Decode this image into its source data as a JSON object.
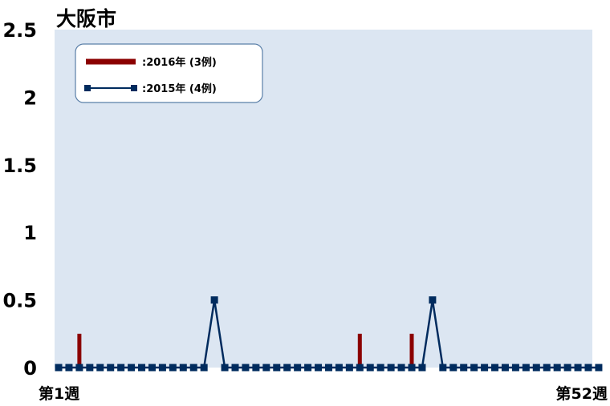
{
  "chart_data": {
    "type": "line",
    "title": "大阪市",
    "xlabel": "",
    "ylabel": "",
    "ylim": [
      0,
      2.5
    ],
    "yticks": [
      "0",
      "0.5",
      "1",
      "1.5",
      "2",
      "2.5"
    ],
    "xticks": [
      "第1週",
      "第52週"
    ],
    "x_range": [
      1,
      52
    ],
    "grid": false,
    "legend_position": "top-left",
    "background_color": "#dce6f2",
    "series": [
      {
        "name": ":2016年 (3例)",
        "kind": "bar",
        "color": "#8b0000",
        "points": [
          [
            3,
            0.25
          ],
          [
            30,
            0.25
          ],
          [
            35,
            0.25
          ]
        ]
      },
      {
        "name": ":2015年 (4例)",
        "kind": "line",
        "color": "#002b5e",
        "values": [
          0,
          0,
          0,
          0,
          0,
          0,
          0,
          0,
          0,
          0,
          0,
          0,
          0,
          0,
          0,
          0.5,
          0,
          0,
          0,
          0,
          0,
          0,
          0,
          0,
          0,
          0,
          0,
          0,
          0,
          0,
          0,
          0,
          0,
          0,
          0,
          0,
          0.5,
          0,
          0,
          0,
          0,
          0,
          0,
          0,
          0,
          0,
          0,
          0,
          0,
          0,
          0,
          0,
          0
        ]
      }
    ]
  }
}
